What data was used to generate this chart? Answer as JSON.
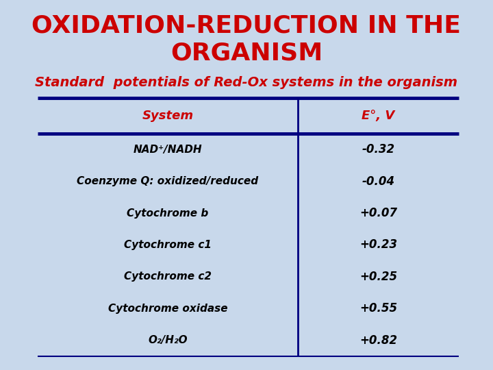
{
  "title_line1": "OXIDATION-REDUCTION IN THE",
  "title_line2": "ORGANISM",
  "subtitle": "Standard  potentials of Red-Ox systems in the organism",
  "title_color": "#cc0000",
  "subtitle_color": "#cc0000",
  "background_color": "#c8d8eb",
  "table_header_col1": "System",
  "table_header_col2": "E°, V",
  "header_color": "#cc0000",
  "row_color": "#000000",
  "divider_color": "#000080",
  "col_divider_color": "#000080",
  "rows": [
    [
      "NAD⁺/NADH",
      "-0.32"
    ],
    [
      "Coenzyme Q: oxidized/reduced",
      "-0.04"
    ],
    [
      "Cytochrome b",
      "+0.07"
    ],
    [
      "Cytochrome c1",
      "+0.23"
    ],
    [
      "Cytochrome c2",
      "+0.25"
    ],
    [
      "Cytochrome oxidase",
      "+0.55"
    ],
    [
      "O₂/H₂O",
      "+0.82"
    ]
  ]
}
